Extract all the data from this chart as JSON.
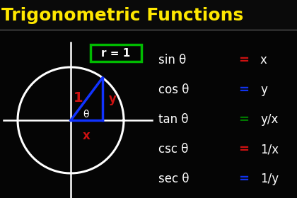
{
  "bg_color": "#050505",
  "title": "Trigonometric Functions",
  "title_color": "#FFE800",
  "title_fontsize": 18,
  "circle_color": "#FFFFFF",
  "axis_color": "#FFFFFF",
  "r_label": "r = 1",
  "r_box_color": "#00BB00",
  "point": [
    0.6,
    0.8
  ],
  "hyp_color": "#1133FF",
  "x_label": "x",
  "y_label": "y",
  "one_label": "1",
  "theta_label": "θ",
  "label_color_red": "#CC1111",
  "label_color_white": "#FFFFFF",
  "formulas": [
    {
      "text": "sin θ ",
      "eq_color": "#CC1111",
      "val": "x"
    },
    {
      "text": "cos θ ",
      "eq_color": "#1133EE",
      "val": "y"
    },
    {
      "text": "tan θ ",
      "eq_color": "#007700",
      "val": "y/x"
    },
    {
      "text": "csc θ ",
      "eq_color": "#CC1111",
      "val": "1/x"
    },
    {
      "text": "sec θ ",
      "eq_color": "#1133EE",
      "val": "1/y"
    }
  ]
}
